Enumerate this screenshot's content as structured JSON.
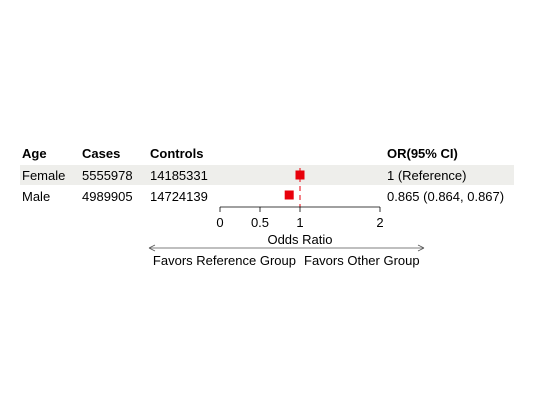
{
  "table": {
    "headers": {
      "group": "Age",
      "cases": "Cases",
      "controls": "Controls",
      "or_ci": "OR(95% CI)"
    },
    "rows": [
      {
        "group": "Female",
        "cases": "5555978",
        "controls": "14185331",
        "or_ci": "1 (Reference)"
      },
      {
        "group": "Male",
        "cases": "4989905",
        "controls": "14724139",
        "or_ci": "0.865 (0.864, 0.867)"
      }
    ]
  },
  "chart_data": {
    "type": "forest",
    "xlabel": "Odds Ratio",
    "x_ticks": [
      0,
      0.5,
      1,
      2
    ],
    "x_tick_labels": [
      "0",
      "0.5",
      "1",
      "2"
    ],
    "reference_line": 1,
    "points": [
      {
        "label": "Female",
        "or": 1,
        "ci_low": 1,
        "ci_high": 1
      },
      {
        "label": "Male",
        "or": 0.865,
        "ci_low": 0.864,
        "ci_high": 0.867
      }
    ],
    "favors_left": "Favors Reference Group",
    "favors_right": "Favors Other Group",
    "marker_color": "#e8000b",
    "row_stripe_color": "#eeeeeb",
    "reference_line_color": "#e8000b"
  }
}
